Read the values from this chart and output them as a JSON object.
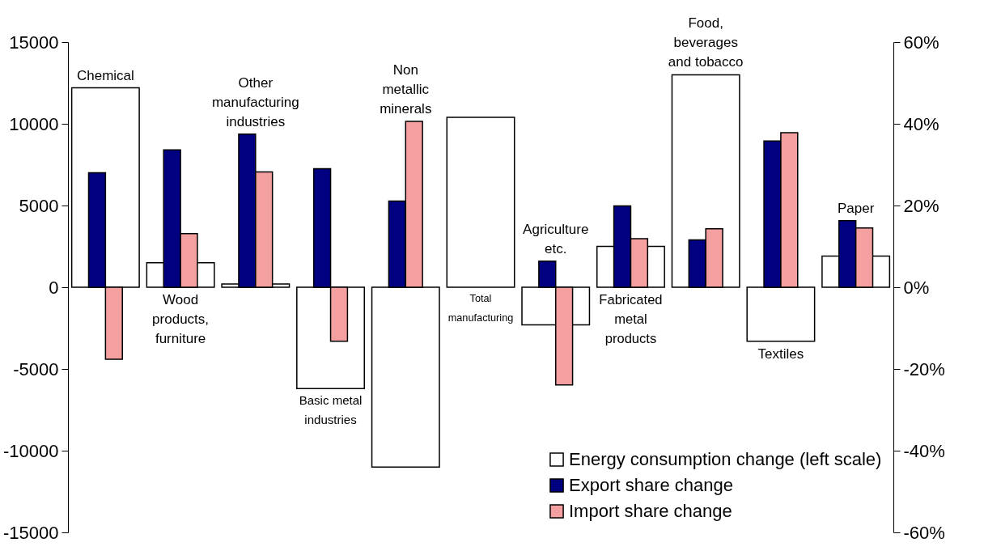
{
  "chart_data": {
    "type": "bar",
    "categories": [
      "Chemical",
      "Wood products, furniture",
      "Other manufacturing industries",
      "Basic metal industries",
      "Non metallic minerals",
      "Total manufacturing",
      "Agriculture etc.",
      "Fabricated metal products",
      "Food, beverages and tobacco",
      "Textiles",
      "Paper"
    ],
    "series": [
      {
        "name": "Energy consumption change (left scale)",
        "color": "#ffffff",
        "values": [
          12200,
          1500,
          200,
          -6200,
          -11000,
          10400,
          -2300,
          2500,
          13000,
          -3300,
          1900
        ]
      },
      {
        "name": "Export share change",
        "color": "#000080",
        "axis": "y2",
        "values": [
          28,
          33.6,
          37.5,
          29,
          21.1,
          null,
          6.4,
          19.9,
          11.6,
          35.8,
          16.3
        ]
      },
      {
        "name": "Import share change",
        "color": "#f4a0a0",
        "axis": "y2",
        "values": [
          -17.6,
          13.1,
          28.2,
          -13.2,
          40.6,
          null,
          -23.9,
          11.9,
          14.3,
          37.8,
          14.5
        ]
      }
    ],
    "ylim": [
      -15000,
      15000
    ],
    "yticks": [
      -15000,
      -10000,
      -5000,
      0,
      5000,
      10000,
      15000
    ],
    "y2lim": [
      -60,
      60
    ],
    "y2ticks": [
      {
        "value": -60,
        "label": "-60%"
      },
      {
        "value": -40,
        "label": "-40%"
      },
      {
        "value": -20,
        "label": "-20%"
      },
      {
        "value": 0,
        "label": "0%"
      },
      {
        "value": 20,
        "label": "20%"
      },
      {
        "value": 40,
        "label": "40%"
      },
      {
        "value": 60,
        "label": "60%"
      }
    ],
    "legend": "bottom right",
    "grid": false
  }
}
